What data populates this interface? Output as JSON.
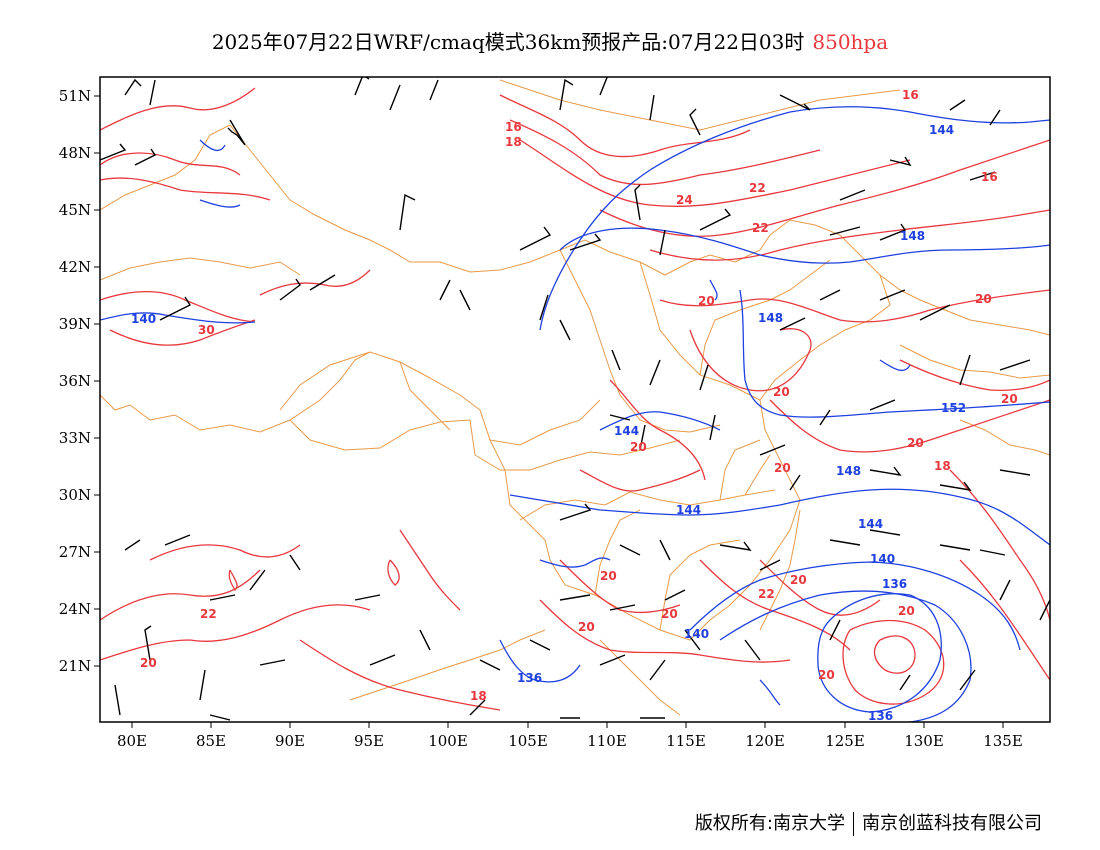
{
  "title": {
    "main": "2025年07月22日WRF/cmaq模式36km预报产品:07月22日03时",
    "level": "850hpa",
    "level_color": "#e8383d"
  },
  "map": {
    "lat_labels": [
      "51N",
      "48N",
      "45N",
      "42N",
      "39N",
      "36N",
      "33N",
      "30N",
      "27N",
      "24N",
      "21N"
    ],
    "lon_labels": [
      "80E",
      "85E",
      "90E",
      "95E",
      "100E",
      "105E",
      "110E",
      "115E",
      "120E",
      "125E",
      "130E",
      "135E"
    ],
    "colors": {
      "temperature_contour": "#e8383d",
      "height_contour": "#1e40e0",
      "boundary": "#e89a4a",
      "wind_barb": "#000000"
    },
    "temperature_labels": [
      "16",
      "18",
      "16",
      "22",
      "24",
      "22",
      "16",
      "30",
      "20",
      "20",
      "20",
      "20",
      "20",
      "20",
      "18",
      "20",
      "20",
      "20",
      "22",
      "20",
      "20",
      "20",
      "22",
      "20",
      "18",
      "20"
    ],
    "height_labels": [
      "144",
      "148",
      "140",
      "148",
      "144",
      "148",
      "152",
      "144",
      "144",
      "140",
      "136",
      "140",
      "136",
      "136"
    ]
  },
  "footer": {
    "copyright": "版权所有:南京大学",
    "company": "南京创蓝科技有限公司"
  }
}
